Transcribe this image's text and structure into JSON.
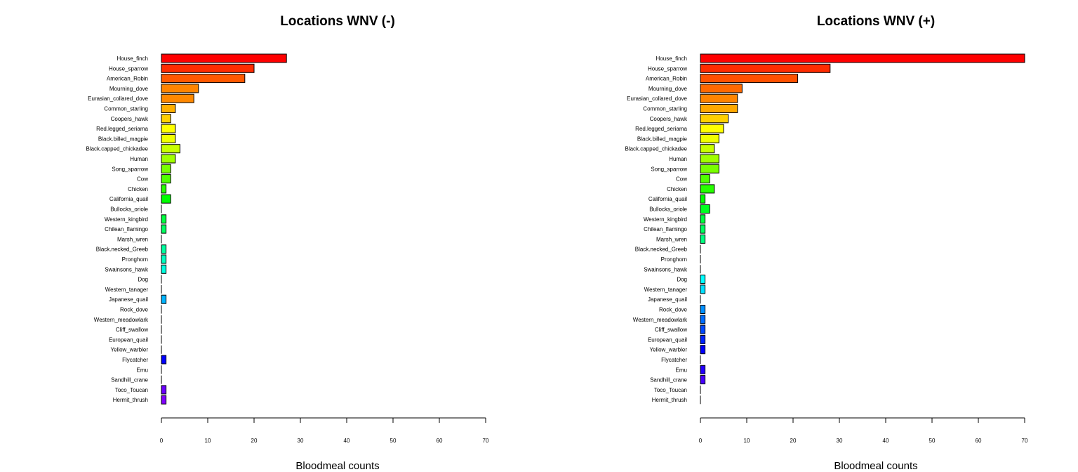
{
  "chart_data": [
    {
      "type": "bar",
      "orientation": "horizontal",
      "title": "Locations WNV (-)",
      "xlabel": "Bloodmeal counts",
      "ylabel": "",
      "xlim": [
        0,
        70
      ],
      "xticks": [
        0,
        10,
        20,
        30,
        40,
        50,
        60,
        70
      ],
      "categories": [
        "House_finch",
        "House_sparrow",
        "American_Robin",
        "Mourning_dove",
        "Eurasian_collared_dove",
        "Common_starling",
        "Coopers_hawk",
        "Red.legged_seriama",
        "Black.billed_magpie",
        "Black.capped_chickadee",
        "Human",
        "Song_sparrow",
        "Cow",
        "Chicken",
        "California_quail",
        "Bullocks_oriole",
        "Western_kingbird",
        "Chilean_flamingo",
        "Marsh_wren",
        "Black.necked_Greeb",
        "Pronghorn",
        "Swainsons_hawk",
        "Dog",
        "Western_tanager",
        "Japanese_quail",
        "Rock_dove",
        "Western_meadowlark",
        "Cliff_swallow",
        "European_quail",
        "Yellow_warbler",
        "Flycatcher",
        "Emu",
        "Sandhill_crane",
        "Toco_Toucan",
        "Hermit_thrush"
      ],
      "values": [
        27,
        20,
        18,
        8,
        7,
        3,
        2,
        3,
        3,
        4,
        3,
        2,
        2,
        1,
        2,
        0,
        1,
        1,
        0,
        1,
        1,
        1,
        0,
        0,
        1,
        0,
        0,
        0,
        0,
        0,
        1,
        0,
        0,
        1,
        1
      ],
      "colors": [
        "#FF0000",
        "#FF2C00",
        "#FF5800",
        "#FF8400",
        "#FF8800",
        "#FFAF00",
        "#FFD000",
        "#FFFF00",
        "#F0FF00",
        "#C8FF00",
        "#A0FF00",
        "#78FF00",
        "#50FF00",
        "#28FF00",
        "#00FF00",
        "#00FF20",
        "#00FF40",
        "#00FF60",
        "#00FF80",
        "#00FFA0",
        "#00FFC0",
        "#00FFE0",
        "#00FFFF",
        "#00E0FF",
        "#00B4FF",
        "#0090FF",
        "#006CFF",
        "#0048FF",
        "#0024FF",
        "#0010FF",
        "#0000FF",
        "#2400FF",
        "#4800FF",
        "#6C00FF",
        "#8000FF"
      ],
      "grid": false,
      "legend": "none"
    },
    {
      "type": "bar",
      "orientation": "horizontal",
      "title": "Locations WNV (+)",
      "xlabel": "Bloodmeal counts",
      "ylabel": "",
      "xlim": [
        0,
        70
      ],
      "xticks": [
        0,
        10,
        20,
        30,
        40,
        50,
        60,
        70
      ],
      "categories": [
        "House_finch",
        "House_sparrow",
        "American_Robin",
        "Mourning_dove",
        "Eurasian_collared_dove",
        "Common_starling",
        "Coopers_hawk",
        "Red.legged_seriama",
        "Black.billed_magpie",
        "Black.capped_chickadee",
        "Human",
        "Song_sparrow",
        "Cow",
        "Chicken",
        "California_quail",
        "Bullocks_oriole",
        "Western_kingbird",
        "Chilean_flamingo",
        "Marsh_wren",
        "Black.necked_Greeb",
        "Pronghorn",
        "Swainsons_hawk",
        "Dog",
        "Western_tanager",
        "Japanese_quail",
        "Rock_dove",
        "Western_meadowlark",
        "Cliff_swallow",
        "European_quail",
        "Yellow_warbler",
        "Flycatcher",
        "Emu",
        "Sandhill_crane",
        "Toco_Toucan",
        "Hermit_thrush"
      ],
      "values": [
        70,
        28,
        21,
        9,
        8,
        8,
        6,
        5,
        4,
        3,
        4,
        4,
        2,
        3,
        1,
        2,
        1,
        1,
        1,
        0,
        0,
        0,
        1,
        1,
        0,
        1,
        1,
        1,
        1,
        1,
        0,
        1,
        1,
        0,
        0
      ],
      "colors": [
        "#FF0000",
        "#FF2C00",
        "#FF5000",
        "#FF6800",
        "#FF8400",
        "#FFA800",
        "#FFD000",
        "#FFFF00",
        "#F0FF00",
        "#C8FF00",
        "#A0FF00",
        "#78FF00",
        "#50FF00",
        "#28FF00",
        "#00FF00",
        "#00FF20",
        "#00FF40",
        "#00FF60",
        "#00FF80",
        "#00FFA0",
        "#00FFC0",
        "#00FFE0",
        "#00FFFF",
        "#00E0FF",
        "#00C0FF",
        "#0090FF",
        "#006CFF",
        "#0048FF",
        "#0024FF",
        "#0000FF",
        "#0000FF",
        "#2400FF",
        "#4800FF",
        "#6C00FF",
        "#8000FF"
      ],
      "grid": false,
      "legend": "none"
    }
  ]
}
